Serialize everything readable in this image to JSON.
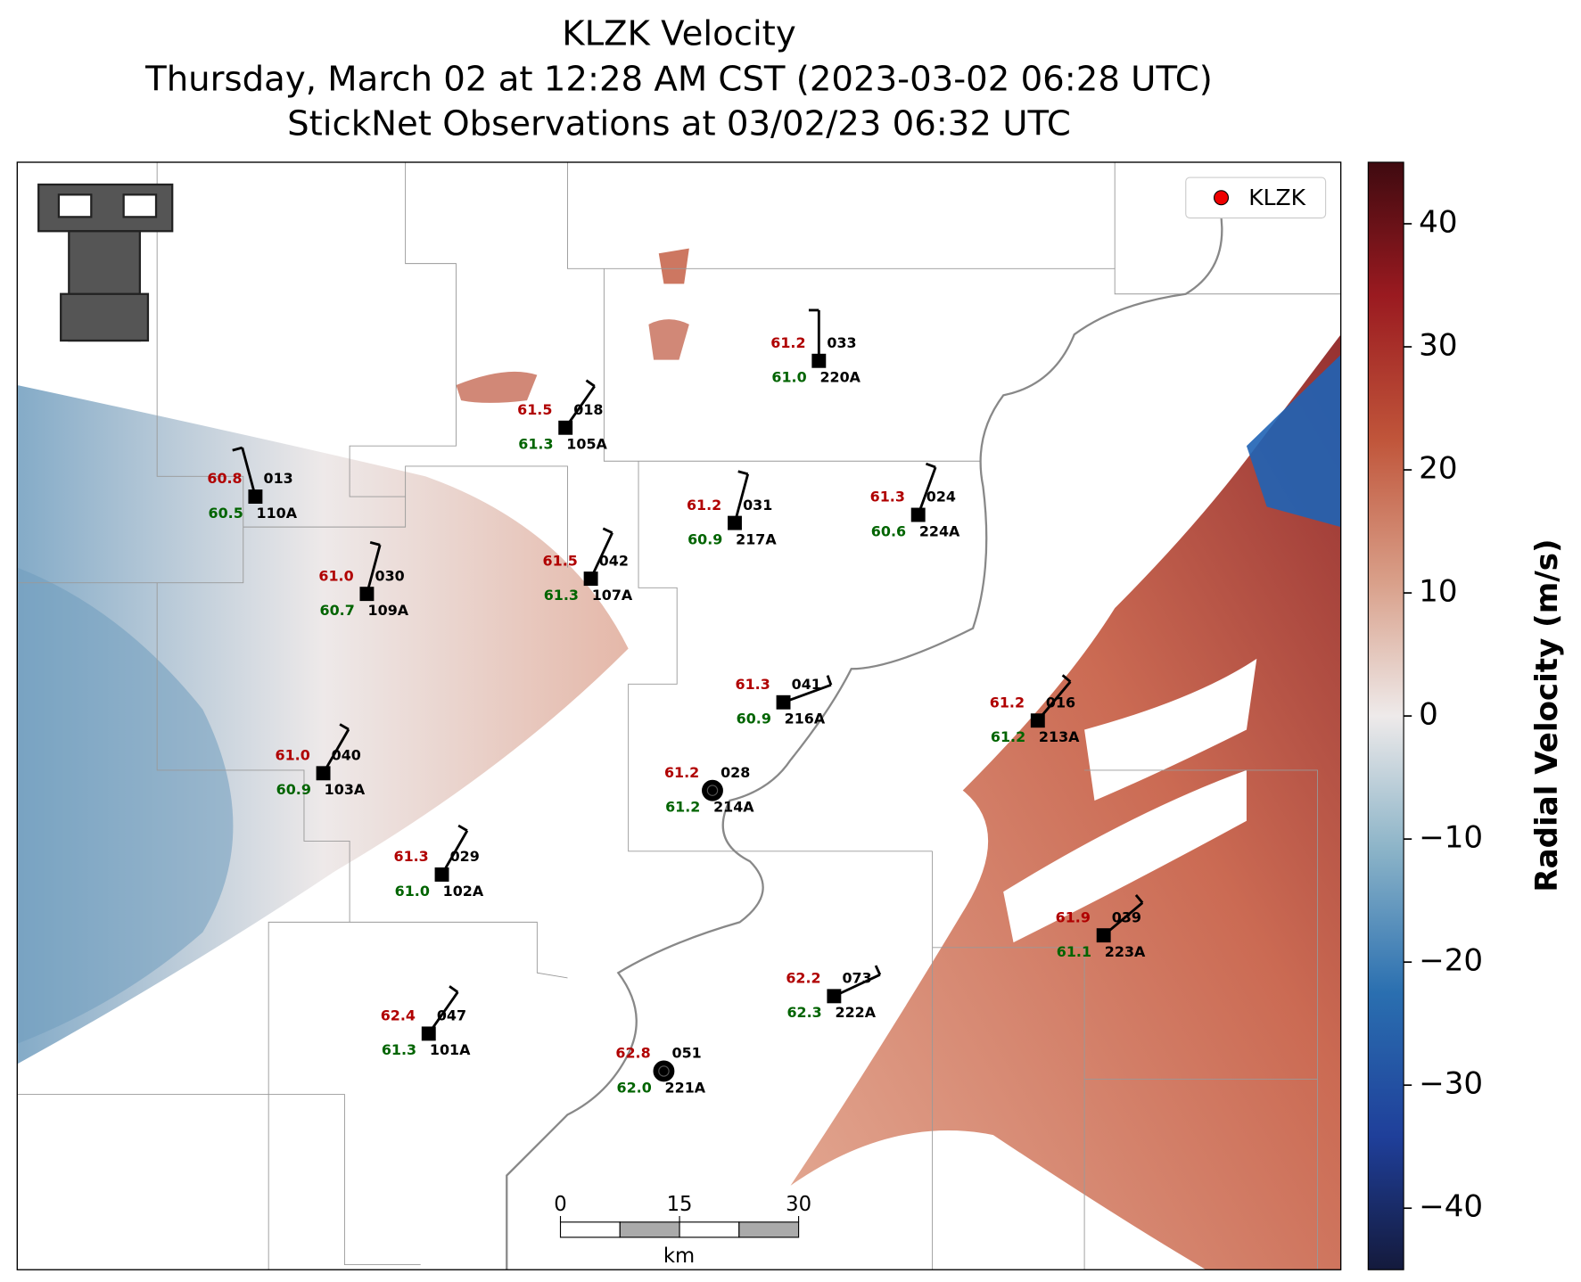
{
  "title": [
    "KLZK Velocity",
    "Thursday, March 02 at 12:28 AM CST (2023-03-02 06:28 UTC)",
    "StickNet Observations at 03/02/23 06:32 UTC"
  ],
  "legend": "KLZK",
  "stations": [
    {
      "temp": "60.8",
      "dew": "60.5",
      "id": "013",
      "name": "110A"
    },
    {
      "temp": "61.0",
      "dew": "60.7",
      "id": "030",
      "name": "109A"
    },
    {
      "temp": "61.0",
      "dew": "60.9",
      "id": "040",
      "name": "103A"
    },
    {
      "temp": "61.3",
      "dew": "61.0",
      "id": "029",
      "name": "102A"
    },
    {
      "temp": "62.4",
      "dew": "61.3",
      "id": "047",
      "name": "101A"
    },
    {
      "temp": "61.5",
      "dew": "61.3",
      "id": "018",
      "name": "105A"
    },
    {
      "temp": "61.5",
      "dew": "61.3",
      "id": "042",
      "name": "107A"
    },
    {
      "temp": "61.2",
      "dew": "60.9",
      "id": "031",
      "name": "217A"
    },
    {
      "temp": "61.2",
      "dew": "61.0",
      "id": "033",
      "name": "220A"
    },
    {
      "temp": "61.3",
      "dew": "60.6",
      "id": "024",
      "name": "224A"
    },
    {
      "temp": "61.3",
      "dew": "60.9",
      "id": "041",
      "name": "216A"
    },
    {
      "temp": "61.2",
      "dew": "61.2",
      "id": "028",
      "name": "214A"
    },
    {
      "temp": "61.2",
      "dew": "61.2",
      "id": "016",
      "name": "213A"
    },
    {
      "temp": "61.9",
      "dew": "61.1",
      "id": "039",
      "name": "223A"
    },
    {
      "temp": "62.2",
      "dew": "62.3",
      "id": "073",
      "name": "222A"
    },
    {
      "temp": "62.8",
      "dew": "62.0",
      "id": "051",
      "name": "221A"
    }
  ],
  "colorbar": {
    "label": "Radial Velocity (m/s)",
    "ylim": [
      -45,
      45
    ],
    "yticks": [
      40,
      30,
      20,
      10,
      0,
      {
        "value": -10,
        "label": "−10"
      },
      {
        "value": -20,
        "label": "−20"
      },
      {
        "value": -30,
        "label": "−30"
      },
      {
        "value": -40,
        "label": "−40"
      }
    ]
  },
  "scale_bar": {
    "label": "km",
    "xlim": [
      0,
      30
    ],
    "xticks": [
      0,
      15,
      30
    ]
  }
}
